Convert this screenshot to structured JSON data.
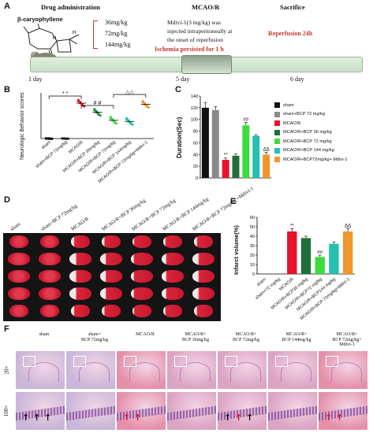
{
  "panels": {
    "A": "A",
    "B": "B",
    "C": "C",
    "D": "D",
    "E": "E",
    "F": "F"
  },
  "panelA": {
    "drug_admin_title": "Drug administration",
    "mcao_title": "MCAO/R",
    "sacrifice_title": "Sacrifice",
    "compound": "β-caryophyllene",
    "doses": [
      "36mg/kg",
      "72mg/kg",
      "144mg/kg"
    ],
    "mdivi_note_1": "Mdivi-1(3 mg/kg) was",
    "mdivi_note_2": "injected intraperitoneally at",
    "mdivi_note_3": "the onset of reperfusion",
    "ischemia_note": "Ischemia persisted for 1 h",
    "reperfusion_note": "Reperfusion 24h",
    "day_labels": [
      "1 day",
      "5 day",
      "6 day"
    ],
    "accent_red": "#c0392b"
  },
  "panelB": {
    "ylabel": "Neurologic Behavior scores",
    "categories": [
      "sham",
      "sham+BCP 72mg/kg",
      "MCAO/R",
      "MCAO/R+BCP 36mg/kg",
      "MCAO/R+BCP 72mg/kg",
      "MCAO/R+BCP 144mg/kg",
      "MCAO/R+BCP 72mg/kg+Mdivi-1"
    ],
    "sig": [
      "* *",
      "# #",
      "△△"
    ]
  },
  "chart_data": [
    {
      "type": "scatter",
      "ylabel": "Neurologic Behavior scores",
      "categories": [
        "sham",
        "sham+BCP 72mg/kg",
        "MCAO/R",
        "MCAO/R+BCP 36mg/kg",
        "MCAO/R+BCP 72mg/kg",
        "MCAO/R+BCP 144mg/kg",
        "MCAO/R+BCP 72mg/kg+Mdivi-1"
      ],
      "values": [
        0,
        0,
        3.1,
        2.3,
        1.6,
        1.5,
        3.0
      ],
      "colors": [
        "#000000",
        "#333333",
        "#e8132a",
        "#1f8f3a",
        "#3ddc3d",
        "#25c0b0",
        "#f0962d"
      ]
    },
    {
      "type": "bar",
      "ylabel": "Duration(Sec)",
      "yticks": [
        "0",
        "20",
        "40",
        "60",
        "80",
        "100",
        "120",
        "140"
      ],
      "ylim": [
        0,
        140
      ],
      "categories": [
        "sham",
        "sham+BCP 72 mg/kg",
        "MCAO/R",
        "MCAO/R+BCP 36 mg/kg",
        "MCAO/R+BCP 72 mg/kg",
        "MCAO/R+BCP 144 mg/kg",
        "MCAO/R+BCP72mg/kg+ Mdivi-1"
      ],
      "values": [
        120,
        116,
        31,
        38,
        90,
        72,
        40
      ],
      "errors": [
        9,
        6,
        3,
        3,
        5,
        2,
        4
      ],
      "colors": [
        "#111111",
        "#8a8a8a",
        "#e8132a",
        "#1f6f3a",
        "#3ddc3d",
        "#25c0b0",
        "#f0962d"
      ],
      "annotations": [
        "",
        "",
        "**",
        "",
        "##",
        "",
        "ΔΔ"
      ]
    },
    {
      "type": "bar",
      "ylabel": "Infarct volume(%)",
      "yticks": [
        "0",
        "10",
        "20",
        "30",
        "40",
        "50",
        "60"
      ],
      "ylim": [
        0,
        60
      ],
      "categories": [
        "sham",
        "sham+72 mg/kg",
        "MCAO/R",
        "MCAO/R+BCP36 mg/kg",
        "MCAO/R+BCP72 mg/kg",
        "MCAO/R+BCP144 mg/kg",
        "MCAO/R+BCP 72mg/kg+Mdivi-1"
      ],
      "values": [
        0,
        0,
        45,
        38,
        18,
        32,
        45
      ],
      "errors": [
        0,
        0,
        3,
        2,
        2,
        2,
        3
      ],
      "colors": [
        "#111111",
        "#8a8a8a",
        "#e8132a",
        "#1f6f3a",
        "#3ddc3d",
        "#25c0b0",
        "#f0962d"
      ],
      "annotations": [
        "",
        "",
        "**",
        "",
        "##",
        "",
        "ΔΔ"
      ]
    }
  ],
  "panelC": {
    "legend": [
      "sham",
      "sham+BCP 72 mg/kg",
      "MCAO/R",
      "MCAO/R+BCP 36 mg/kg",
      "MCAO/R+BCP 72 mg/kg",
      "MCAO/R+BCP 144 mg/kg",
      "MCAO/R+BCP72mg/kg+ Mdivi-1"
    ]
  },
  "panelD": {
    "labels": [
      "sham",
      "sham+BCP 72mg/kg",
      "MCAO/R",
      "MCAO/R+BCP 36mg/kg",
      "MCAO/R+BCP 72mg/kg",
      "MCAO/R+BCP 144mg/kg",
      "MCAO/R+BCP 72mg/kg +Mdivi-1"
    ]
  },
  "panelF": {
    "labels": [
      "sham",
      "sham+\nBCP 72mg/kg",
      "MCAO/R",
      "MCAO/R+\nBCP 36mg/kg",
      "MCAO/R+\nBCP 72mg/kg",
      "MCAO/R+\nBCP 144mg/kg",
      "MCAO/R+\nBCP 72mg/kg+\nMdivi-1"
    ],
    "row_labels": [
      "20×",
      "100×"
    ]
  }
}
